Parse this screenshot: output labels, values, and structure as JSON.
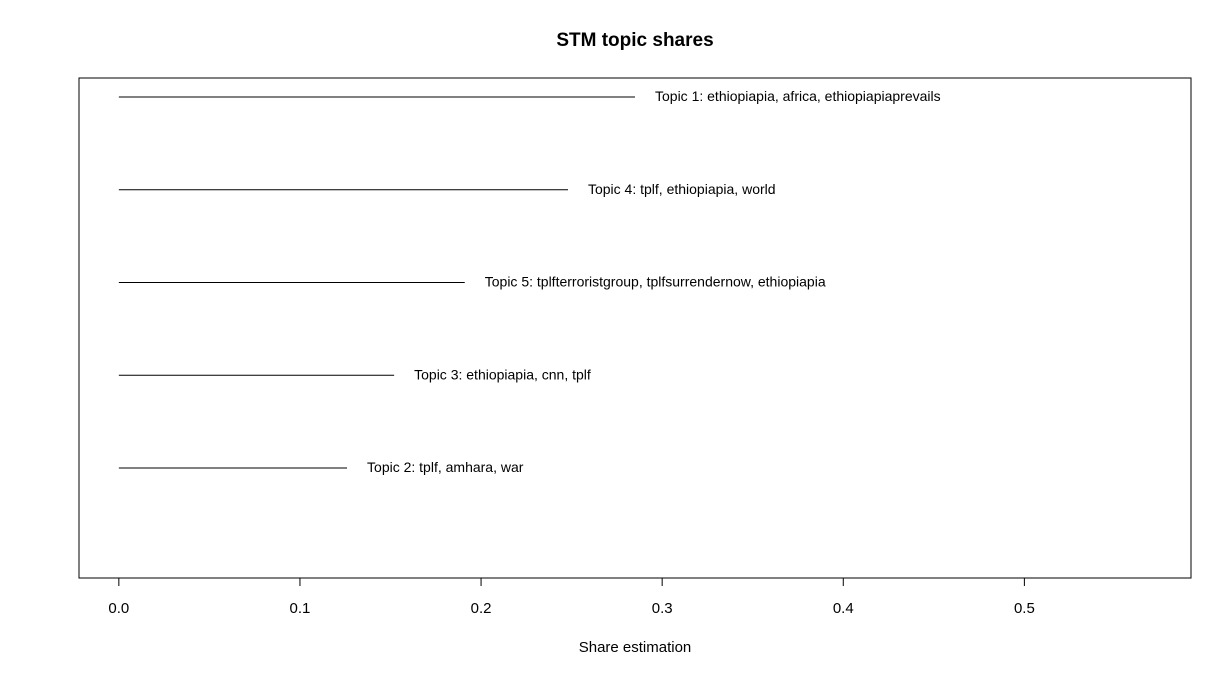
{
  "chart_data": {
    "type": "bar",
    "orientation": "horizontal",
    "title": "STM topic shares",
    "xlabel": "Share estimation",
    "ylabel": "",
    "xlim": [
      -0.022,
      0.592
    ],
    "x_ticks": [
      "0.0",
      "0.1",
      "0.2",
      "0.3",
      "0.4",
      "0.5"
    ],
    "x_tick_values": [
      0,
      0.1,
      0.2,
      0.3,
      0.4,
      0.5
    ],
    "bars": [
      {
        "label": "Topic 1: ethiopiapia, africa, ethiopiapiaprevails",
        "value": 0.285
      },
      {
        "label": "Topic 4: tplf, ethiopiapia, world",
        "value": 0.248
      },
      {
        "label": "Topic 5: tplfterroristgroup, tplfsurrendernow, ethiopiapia",
        "value": 0.191
      },
      {
        "label": "Topic 3: ethiopiapia, cnn, tplf",
        "value": 0.152
      },
      {
        "label": "Topic 2: tplf, amhara, war",
        "value": 0.126
      }
    ],
    "grid": false,
    "legend": "none",
    "colors": {
      "line": "#000000",
      "background": "#ffffff"
    }
  }
}
